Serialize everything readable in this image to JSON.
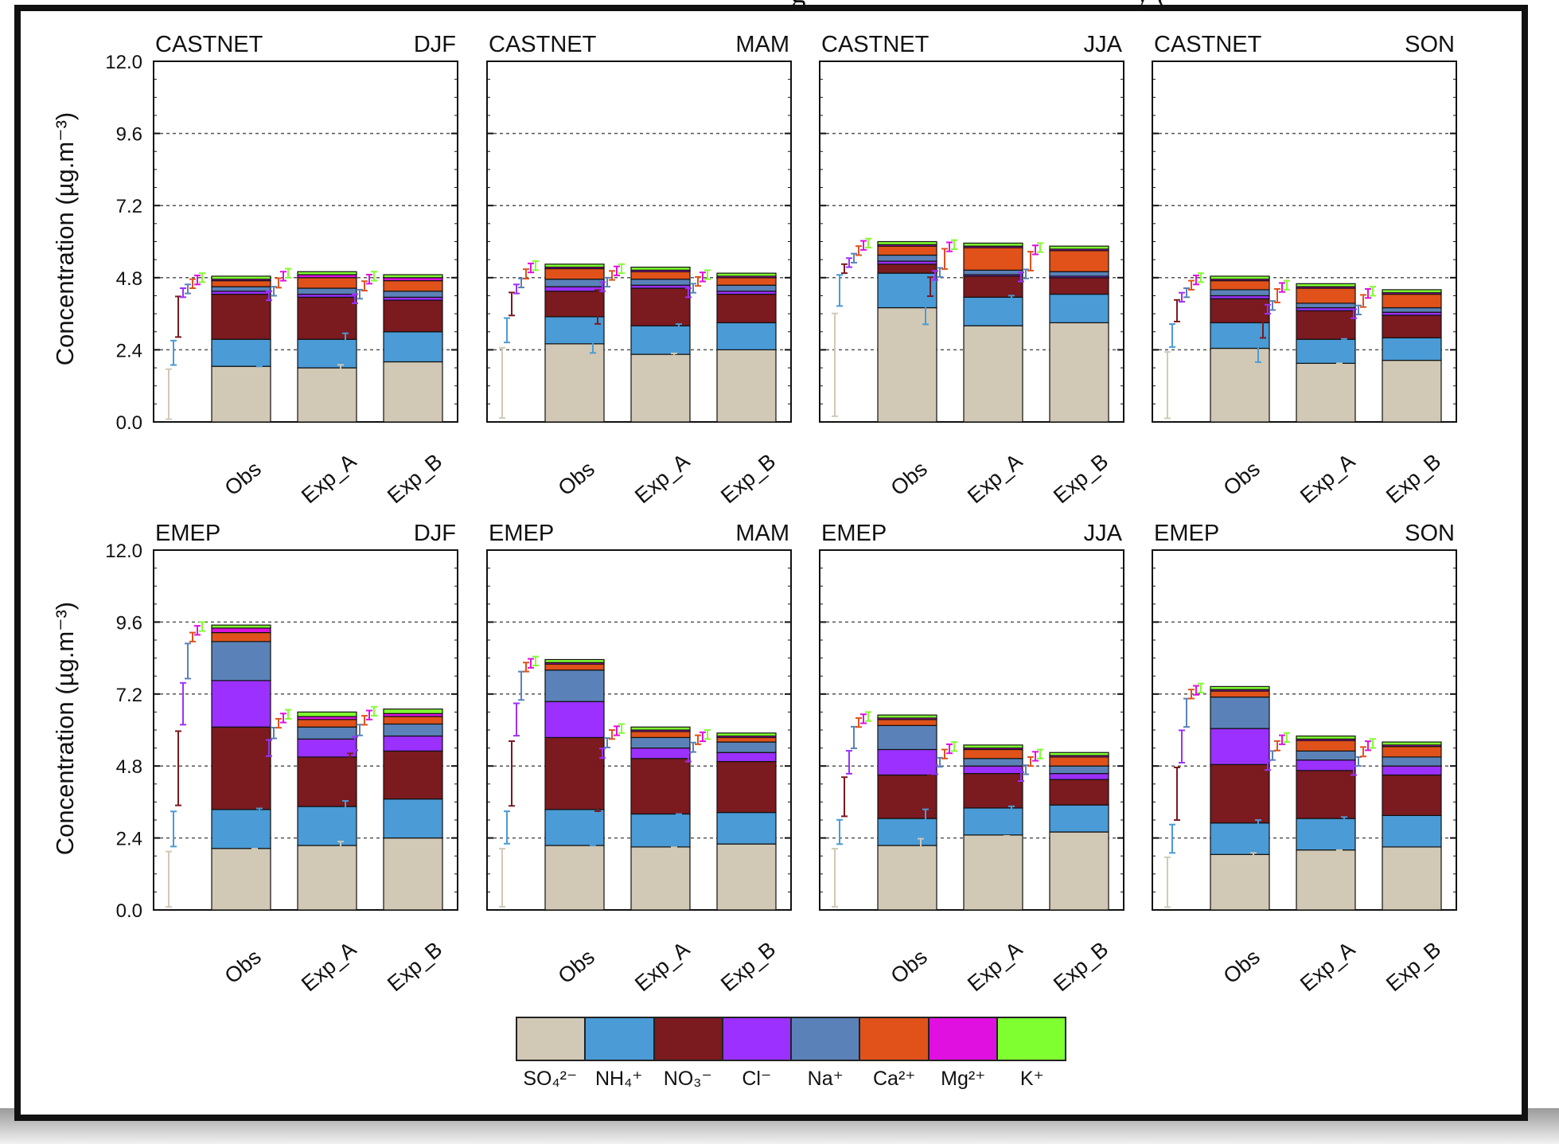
{
  "figure": {
    "top_caption_fragment": "g                                              y (",
    "y_axis_label": "Concentration (µg.m⁻³)",
    "y_ticks": [
      "0.0",
      "2.4",
      "4.8",
      "7.2",
      "9.6",
      "12.0"
    ],
    "x_categories": [
      "Obs",
      "Exp_A",
      "Exp_B"
    ]
  },
  "species": [
    {
      "name": "SO₄²⁻",
      "color": "#d1c9b5"
    },
    {
      "name": "NH₄⁺",
      "color": "#4a9bd6"
    },
    {
      "name": "NO₃⁻",
      "color": "#7b1a1f"
    },
    {
      "name": "Cl⁻",
      "color": "#9b30ff"
    },
    {
      "name": "Na⁺",
      "color": "#5a82b8"
    },
    {
      "name": "Ca²⁺",
      "color": "#e0521a"
    },
    {
      "name": "Mg²⁺",
      "color": "#e010e0"
    },
    {
      "name": "K⁺",
      "color": "#80ff30"
    }
  ],
  "chart_data": [
    {
      "type": "bar",
      "stacked": true,
      "network": "CASTNET",
      "season": "DJF",
      "ylim": [
        0,
        12
      ],
      "categories": [
        "Obs",
        "Exp_A",
        "Exp_B"
      ],
      "stacks": [
        [
          1.85,
          0.9,
          1.5,
          0.1,
          0.15,
          0.2,
          0.05,
          0.1
        ],
        [
          1.8,
          0.95,
          1.4,
          0.1,
          0.2,
          0.35,
          0.1,
          0.1
        ],
        [
          2.0,
          1.0,
          1.05,
          0.1,
          0.2,
          0.35,
          0.1,
          0.1
        ]
      ]
    },
    {
      "type": "bar",
      "stacked": true,
      "network": "CASTNET",
      "season": "MAM",
      "ylim": [
        0,
        12
      ],
      "categories": [
        "Obs",
        "Exp_A",
        "Exp_B"
      ],
      "stacks": [
        [
          2.6,
          0.9,
          0.85,
          0.15,
          0.25,
          0.35,
          0.05,
          0.1
        ],
        [
          2.25,
          0.95,
          1.25,
          0.1,
          0.2,
          0.25,
          0.05,
          0.1
        ],
        [
          2.4,
          0.9,
          0.95,
          0.1,
          0.2,
          0.25,
          0.05,
          0.1
        ]
      ]
    },
    {
      "type": "bar",
      "stacked": true,
      "network": "CASTNET",
      "season": "JJA",
      "ylim": [
        0,
        12
      ],
      "categories": [
        "Obs",
        "Exp_A",
        "Exp_B"
      ],
      "stacks": [
        [
          3.8,
          1.15,
          0.3,
          0.1,
          0.2,
          0.3,
          0.05,
          0.1
        ],
        [
          3.2,
          0.95,
          0.7,
          0.05,
          0.15,
          0.75,
          0.05,
          0.1
        ],
        [
          3.3,
          0.95,
          0.55,
          0.05,
          0.15,
          0.7,
          0.05,
          0.1
        ]
      ]
    },
    {
      "type": "bar",
      "stacked": true,
      "network": "CASTNET",
      "season": "SON",
      "ylim": [
        0,
        12
      ],
      "categories": [
        "Obs",
        "Exp_A",
        "Exp_B"
      ],
      "stacks": [
        [
          2.45,
          0.85,
          0.8,
          0.1,
          0.2,
          0.3,
          0.05,
          0.1
        ],
        [
          1.95,
          0.8,
          0.95,
          0.1,
          0.15,
          0.5,
          0.05,
          0.1
        ],
        [
          2.05,
          0.75,
          0.75,
          0.1,
          0.15,
          0.45,
          0.05,
          0.1
        ]
      ]
    },
    {
      "type": "bar",
      "stacked": true,
      "network": "EMEP",
      "season": "DJF",
      "ylim": [
        0,
        12
      ],
      "categories": [
        "Obs",
        "Exp_A",
        "Exp_B"
      ],
      "stacks": [
        [
          2.05,
          1.3,
          2.75,
          1.55,
          1.3,
          0.3,
          0.15,
          0.1
        ],
        [
          2.15,
          1.3,
          1.65,
          0.6,
          0.4,
          0.25,
          0.1,
          0.15
        ],
        [
          2.4,
          1.3,
          1.6,
          0.5,
          0.4,
          0.25,
          0.1,
          0.15
        ]
      ]
    },
    {
      "type": "bar",
      "stacked": true,
      "network": "EMEP",
      "season": "MAM",
      "ylim": [
        0,
        12
      ],
      "categories": [
        "Obs",
        "Exp_A",
        "Exp_B"
      ],
      "stacks": [
        [
          2.15,
          1.2,
          2.4,
          1.2,
          1.05,
          0.2,
          0.05,
          0.1
        ],
        [
          2.1,
          1.1,
          1.85,
          0.35,
          0.35,
          0.2,
          0.05,
          0.1
        ],
        [
          2.2,
          1.05,
          1.7,
          0.3,
          0.35,
          0.15,
          0.05,
          0.1
        ]
      ]
    },
    {
      "type": "bar",
      "stacked": true,
      "network": "EMEP",
      "season": "JJA",
      "ylim": [
        0,
        12
      ],
      "categories": [
        "Obs",
        "Exp_A",
        "Exp_B"
      ],
      "stacks": [
        [
          2.15,
          0.9,
          1.45,
          0.85,
          0.8,
          0.2,
          0.05,
          0.1
        ],
        [
          2.5,
          0.9,
          1.15,
          0.25,
          0.25,
          0.3,
          0.05,
          0.1
        ],
        [
          2.6,
          0.9,
          0.85,
          0.2,
          0.25,
          0.3,
          0.05,
          0.1
        ]
      ]
    },
    {
      "type": "bar",
      "stacked": true,
      "network": "EMEP",
      "season": "SON",
      "ylim": [
        0,
        12
      ],
      "categories": [
        "Obs",
        "Exp_A",
        "Exp_B"
      ],
      "stacks": [
        [
          1.85,
          1.05,
          1.95,
          1.2,
          1.05,
          0.2,
          0.05,
          0.1
        ],
        [
          2.0,
          1.05,
          1.6,
          0.35,
          0.3,
          0.35,
          0.05,
          0.1
        ],
        [
          2.1,
          1.05,
          1.35,
          0.3,
          0.3,
          0.35,
          0.05,
          0.1
        ]
      ]
    }
  ]
}
